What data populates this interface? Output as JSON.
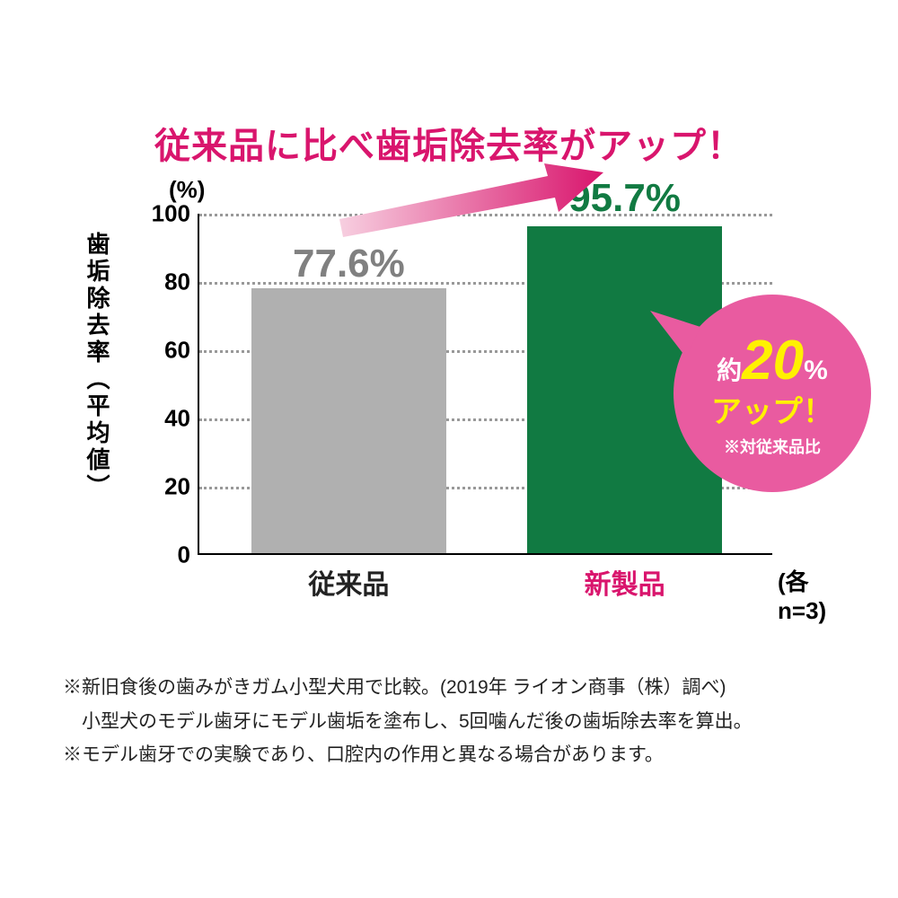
{
  "headline": {
    "text": "従来品に比べ歯垢除去率がアップ！",
    "color": "#d9156d"
  },
  "chart": {
    "type": "bar",
    "y_axis_title": "歯垢除去率（平均値）",
    "y_unit_label": "(%)",
    "ylim": [
      0,
      100
    ],
    "ytick_step": 20,
    "yticks": [
      0,
      20,
      40,
      60,
      80,
      100
    ],
    "grid_color": "#999999",
    "axis_color": "#000000",
    "background_color": "#ffffff",
    "bar_width_ratio": 0.34,
    "bars": [
      {
        "category": "従来品",
        "value": 77.6,
        "display_value": "77.6%",
        "bar_color": "#b0b0b0",
        "value_color": "#808080",
        "label_color": "#222222",
        "x_center": 0.26
      },
      {
        "category": "新製品",
        "value": 95.7,
        "display_value": "95.7%",
        "bar_color": "#117a42",
        "value_color": "#117a42",
        "label_color": "#d9156d",
        "x_center": 0.74
      }
    ],
    "n_note": "(各n=3)"
  },
  "arrow": {
    "gradient_from": "#f7cfe0",
    "gradient_to": "#d9156d"
  },
  "bubble": {
    "bg_color": "#e95ba0",
    "line1_prefix": "約",
    "line1_big": "20",
    "line1_suffix": "%",
    "line2": "アップ！",
    "line3": "※対従来品比",
    "big_color": "#fff100",
    "text_color": "#ffffff"
  },
  "footnotes": [
    "※新旧食後の歯みがきガム小型犬用で比較。(2019年 ライオン商事（株）調べ)",
    "　小型犬のモデル歯牙にモデル歯垢を塗布し、5回噛んだ後の歯垢除去率を算出。",
    "※モデル歯牙での実験であり、口腔内の作用と異なる場合があります。"
  ]
}
